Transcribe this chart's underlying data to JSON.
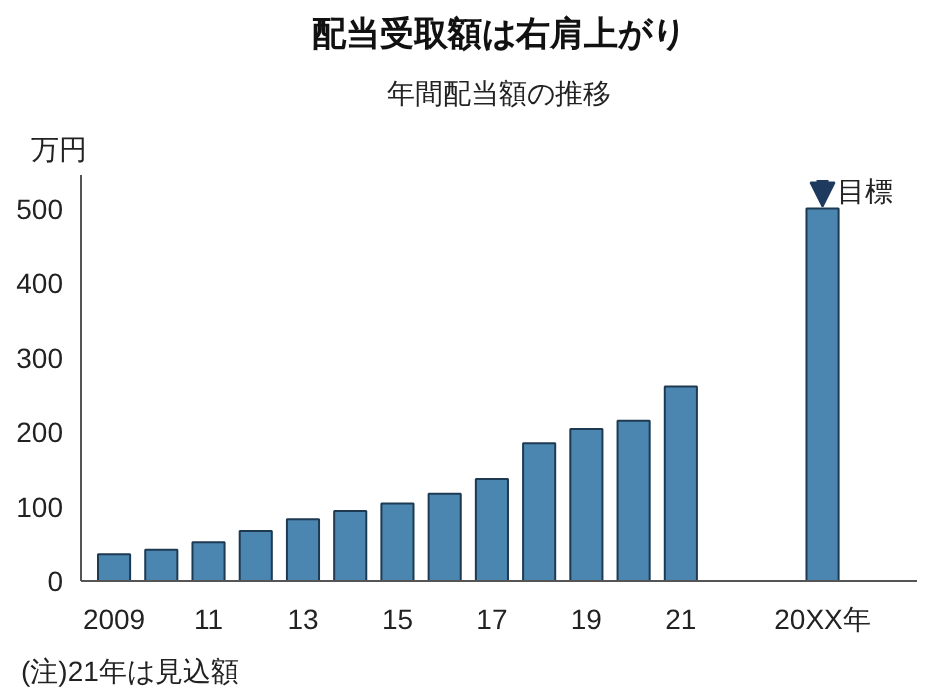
{
  "chart_data": {
    "type": "bar",
    "title": "配当受取額は右肩上がり",
    "subtitle": "年間配当額の推移",
    "ylabel": "万円",
    "categories": [
      "2009",
      null,
      "11",
      null,
      "13",
      null,
      "15",
      null,
      "17",
      null,
      "19",
      null,
      "21",
      null,
      null,
      "20XX年"
    ],
    "values": [
      36,
      42,
      52,
      67,
      83,
      94,
      104,
      117,
      137,
      185,
      204,
      215,
      261,
      null,
      null,
      500
    ],
    "color": "#4a86b0",
    "ylim": [
      0,
      545
    ],
    "yticks": [
      0,
      100,
      200,
      300,
      400,
      500
    ],
    "grid": false,
    "annotations": [
      {
        "text": "目標",
        "x": "20XX年",
        "y": 500
      },
      "(注)21年は見込額"
    ]
  }
}
